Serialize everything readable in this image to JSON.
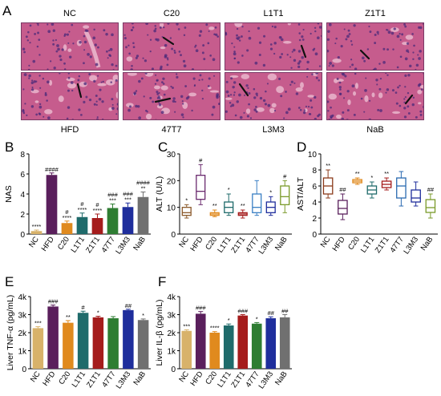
{
  "panel_a": {
    "letter": "A",
    "top_labels": [
      "NC",
      "C20",
      "L1T1",
      "Z1T1"
    ],
    "bottom_labels": [
      "HFD",
      "47T7",
      "L3M3",
      "NaB"
    ],
    "colors": {
      "tissue": "#c65c8d",
      "nuclei": "#4a2a7a",
      "pale": "#e9b6cc",
      "arrow": "#111111"
    }
  },
  "chart_data": [
    {
      "id": "B",
      "type": "bar",
      "letter": "B",
      "ylabel": "NAS",
      "ylim": [
        0,
        8
      ],
      "yticks": [
        "0",
        "2",
        "4",
        "6",
        "8"
      ],
      "categories": [
        "NC",
        "HFD",
        "C20",
        "L1T1",
        "Z1T1",
        "47T7",
        "L3M3",
        "NaB"
      ],
      "values": [
        0.3,
        5.9,
        1.1,
        1.7,
        1.6,
        2.6,
        2.7,
        3.7
      ],
      "errors": [
        0.1,
        0.2,
        0.2,
        0.4,
        0.4,
        0.4,
        0.4,
        0.5
      ],
      "colors": [
        "#d8b26a",
        "#5a1f5c",
        "#e08a1e",
        "#1f6b6b",
        "#a51c1c",
        "#2e7d32",
        "#1f2e9c",
        "#707070"
      ],
      "annot_top": [
        "",
        "####",
        "#",
        "#",
        "#",
        "###",
        "###",
        "####"
      ],
      "annot_bottom": [
        "****",
        "",
        "****",
        "****",
        "****",
        "***",
        "***",
        "**"
      ]
    },
    {
      "id": "C",
      "type": "box",
      "letter": "C",
      "ylabel": "ALT (U/L)",
      "ylim": [
        0,
        30
      ],
      "yticks": [
        "0",
        "10",
        "20",
        "30"
      ],
      "categories": [
        "NC",
        "HFD",
        "C20",
        "L1T1",
        "Z1T1",
        "47T7",
        "L3M3",
        "NaB"
      ],
      "boxes": [
        {
          "min": 6,
          "q1": 7,
          "median": 8,
          "q3": 10,
          "max": 11
        },
        {
          "min": 11,
          "q1": 13,
          "median": 16,
          "q3": 22,
          "max": 26
        },
        {
          "min": 6.5,
          "q1": 7,
          "median": 7.5,
          "q3": 8,
          "max": 9
        },
        {
          "min": 7,
          "q1": 8,
          "median": 10,
          "q3": 12,
          "max": 15
        },
        {
          "min": 6,
          "q1": 7,
          "median": 7.5,
          "q3": 8,
          "max": 9
        },
        {
          "min": 7,
          "q1": 8,
          "median": 10,
          "q3": 15,
          "max": 20
        },
        {
          "min": 7,
          "q1": 8,
          "median": 10,
          "q3": 12,
          "max": 14
        },
        {
          "min": 8,
          "q1": 11,
          "median": 14,
          "q3": 18,
          "max": 20
        }
      ],
      "colors": [
        "#8b5a2b",
        "#6a2a6e",
        "#e08a1e",
        "#1f6b6b",
        "#a51c1c",
        "#3a7fc4",
        "#1f2e9c",
        "#7a9a2a"
      ],
      "annot": [
        "*",
        "#",
        "**",
        "*",
        "**",
        "",
        "*",
        "#"
      ]
    },
    {
      "id": "D",
      "type": "box",
      "letter": "D",
      "ylabel": "AST/ALT",
      "ylim": [
        0,
        10
      ],
      "yticks": [
        "0",
        "2",
        "4",
        "6",
        "8",
        "10"
      ],
      "categories": [
        "NC",
        "HFD",
        "C20",
        "L1T1",
        "Z1T1",
        "47T7",
        "L3M3",
        "NaB"
      ],
      "boxes": [
        {
          "min": 4.5,
          "q1": 5,
          "median": 6,
          "q3": 7,
          "max": 8
        },
        {
          "min": 1.8,
          "q1": 2.5,
          "median": 3.2,
          "q3": 4.2,
          "max": 5
        },
        {
          "min": 6.2,
          "q1": 6.4,
          "median": 6.6,
          "q3": 6.8,
          "max": 7
        },
        {
          "min": 4.5,
          "q1": 5,
          "median": 5.5,
          "q3": 6,
          "max": 6.5
        },
        {
          "min": 5.5,
          "q1": 5.8,
          "median": 6.2,
          "q3": 6.6,
          "max": 7
        },
        {
          "min": 3.5,
          "q1": 4.5,
          "median": 6,
          "q3": 7,
          "max": 7.8
        },
        {
          "min": 3.5,
          "q1": 4,
          "median": 4.5,
          "q3": 5.5,
          "max": 6.5
        },
        {
          "min": 2,
          "q1": 2.7,
          "median": 3.3,
          "q3": 4.3,
          "max": 5
        }
      ],
      "colors": [
        "#8b3a1a",
        "#5a1f5c",
        "#e08a1e",
        "#1f6b6b",
        "#a51c1c",
        "#2a6ab0",
        "#1f2e9c",
        "#7a9a2a"
      ],
      "annot": [
        "**",
        "##",
        "**",
        "*",
        "**",
        "",
        "",
        "##"
      ]
    },
    {
      "id": "E",
      "type": "bar",
      "letter": "E",
      "ylabel": "Liver TNF-α (pg/mL)",
      "ylim": [
        0,
        4000
      ],
      "yticks": [
        "0",
        "1k",
        "2k",
        "3k",
        "4k"
      ],
      "categories": [
        "NC",
        "HFD",
        "C20",
        "L1T1",
        "Z1T1",
        "47T7",
        "L3M3",
        "NaB"
      ],
      "values": [
        2250,
        3450,
        2550,
        3100,
        2850,
        2800,
        3250,
        2700
      ],
      "errors": [
        80,
        80,
        120,
        90,
        60,
        90,
        50,
        60
      ],
      "colors": [
        "#d8b26a",
        "#5a1f5c",
        "#e08a1e",
        "#1f6b6b",
        "#a51c1c",
        "#2e7d32",
        "#1f2e9c",
        "#707070"
      ],
      "annot_top": [
        "***",
        "###",
        "**",
        "#",
        "*",
        "",
        "##",
        "*"
      ],
      "annot_bottom": [
        "",
        "",
        "",
        "",
        "",
        "",
        "",
        ""
      ]
    },
    {
      "id": "F",
      "type": "bar",
      "letter": "F",
      "ylabel": "Liver IL-β (pg/mL)",
      "ylim": [
        0,
        4000
      ],
      "yticks": [
        "0",
        "1k",
        "2k",
        "3k",
        "4k"
      ],
      "categories": [
        "NC",
        "HFD",
        "C20",
        "L1T1",
        "Z1T1",
        "47T7",
        "L3M3",
        "NaB"
      ],
      "values": [
        2100,
        3050,
        2000,
        2400,
        2950,
        2500,
        2800,
        2850
      ],
      "errors": [
        60,
        120,
        60,
        80,
        50,
        60,
        80,
        150
      ],
      "colors": [
        "#d8b26a",
        "#5a1f5c",
        "#e08a1e",
        "#1f6b6b",
        "#a51c1c",
        "#2e7d32",
        "#1f2e9c",
        "#707070"
      ],
      "annot_top": [
        "***",
        "###",
        "****",
        "*",
        "###",
        "*",
        "##",
        "##"
      ],
      "annot_bottom": [
        "",
        "",
        "",
        "",
        "",
        "",
        "",
        ""
      ]
    }
  ]
}
